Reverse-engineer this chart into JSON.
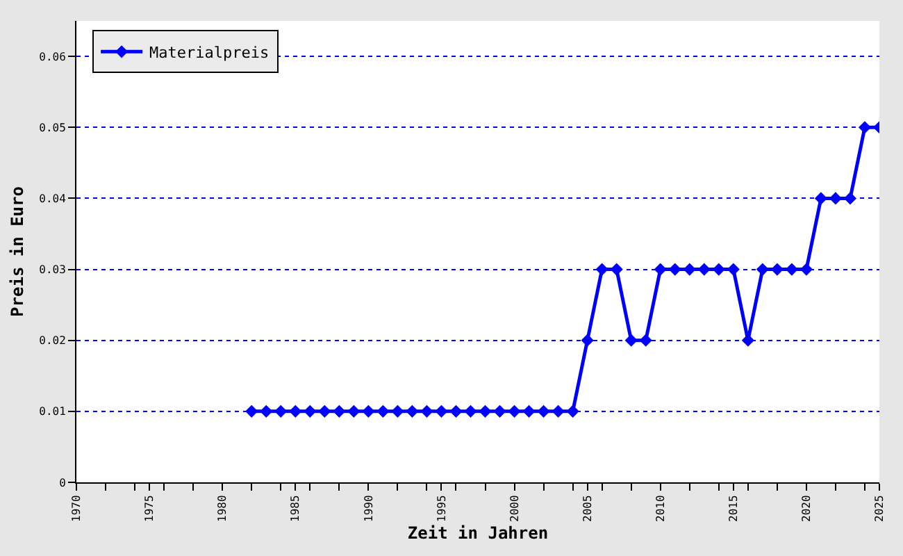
{
  "chart_data": {
    "type": "line",
    "xlabel": "Zeit in Jahren",
    "ylabel": "Preis in Euro",
    "x": [
      1982,
      1983,
      1984,
      1985,
      1986,
      1987,
      1988,
      1989,
      1990,
      1991,
      1992,
      1993,
      1994,
      1995,
      1996,
      1997,
      1998,
      1999,
      2000,
      2001,
      2002,
      2003,
      2004,
      2005,
      2006,
      2007,
      2008,
      2009,
      2010,
      2011,
      2012,
      2013,
      2014,
      2015,
      2016,
      2017,
      2018,
      2019,
      2020,
      2021,
      2022,
      2023,
      2024,
      2025
    ],
    "series": [
      {
        "name": "Materialpreis",
        "color": "#0000ff",
        "values": [
          0.01,
          0.01,
          0.01,
          0.01,
          0.01,
          0.01,
          0.01,
          0.01,
          0.01,
          0.01,
          0.01,
          0.01,
          0.01,
          0.01,
          0.01,
          0.01,
          0.01,
          0.01,
          0.01,
          0.01,
          0.01,
          0.01,
          0.01,
          0.02,
          0.03,
          0.03,
          0.02,
          0.02,
          0.03,
          0.03,
          0.03,
          0.03,
          0.03,
          0.03,
          0.02,
          0.03,
          0.03,
          0.03,
          0.03,
          0.04,
          0.04,
          0.04,
          0.05,
          0.05
        ]
      }
    ],
    "xlim": [
      1970,
      2025
    ],
    "xticks": [
      1970,
      {
        "value": 1972,
        "label": null
      },
      {
        "value": 1974,
        "label": null
      },
      1975,
      {
        "value": 1976,
        "label": null
      },
      {
        "value": 1978,
        "label": null
      },
      1980,
      {
        "value": 1982,
        "label": null
      },
      {
        "value": 1984,
        "label": null
      },
      1985,
      {
        "value": 1986,
        "label": null
      },
      {
        "value": 1988,
        "label": null
      },
      1990,
      {
        "value": 1992,
        "label": null
      },
      {
        "value": 1994,
        "label": null
      },
      1995,
      {
        "value": 1996,
        "label": null
      },
      {
        "value": 1998,
        "label": null
      },
      2000,
      {
        "value": 2002,
        "label": null
      },
      {
        "value": 2004,
        "label": null
      },
      2005,
      {
        "value": 2006,
        "label": null
      },
      {
        "value": 2008,
        "label": null
      },
      2010,
      {
        "value": 2012,
        "label": null
      },
      {
        "value": 2014,
        "label": null
      },
      2015,
      {
        "value": 2016,
        "label": null
      },
      {
        "value": 2018,
        "label": null
      },
      2020,
      {
        "value": 2022,
        "label": null
      },
      {
        "value": 2024,
        "label": null
      },
      2025
    ],
    "ylim": [
      0,
      0.065
    ],
    "yticks": [
      0,
      0.01,
      0.02,
      0.03,
      0.04,
      0.05,
      0.06
    ],
    "grid": "y",
    "legend": "top left",
    "marker": "diamond",
    "line_style": "solid"
  }
}
